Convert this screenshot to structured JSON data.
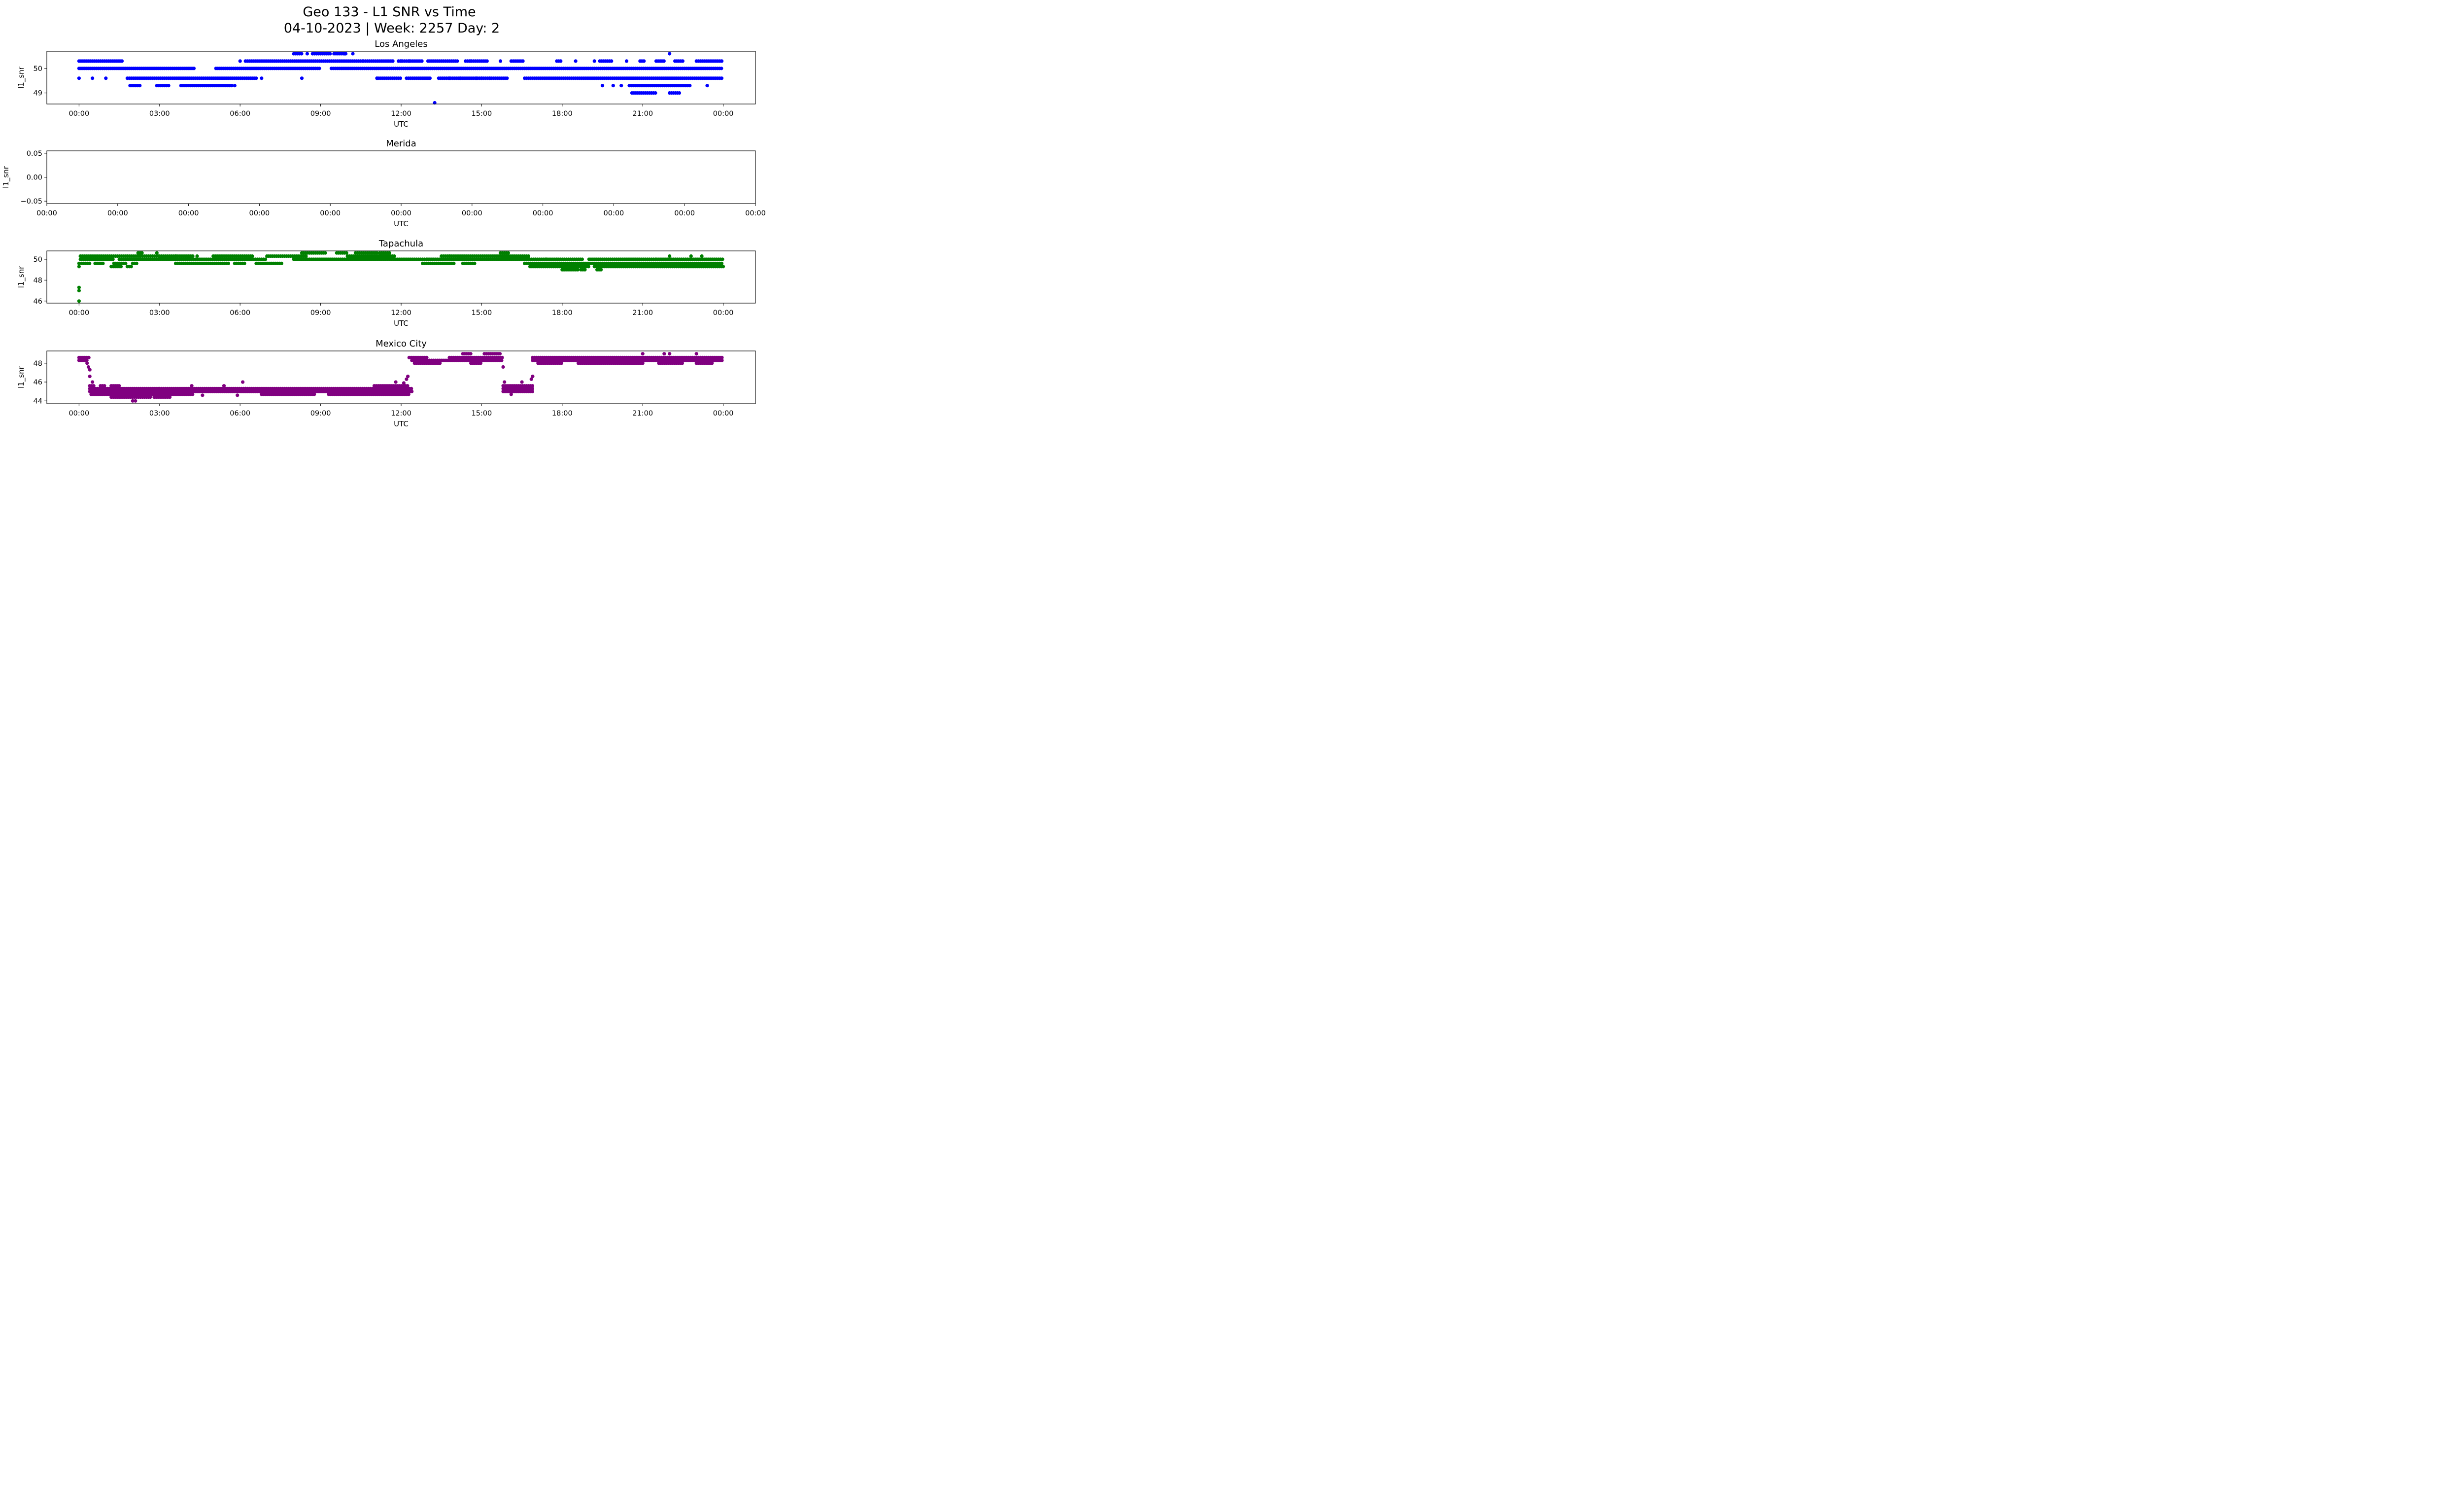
{
  "figure": {
    "title_line1": "Geo 133 - L1 SNR vs Time",
    "title_line2": "04-10-2023 | Week: 2257 Day: 2"
  },
  "chart_data": [
    {
      "type": "scatter",
      "title": "Los Angeles",
      "xlabel": "UTC",
      "ylabel": "l1_snr",
      "color": "#0000ff",
      "x_range_hours": [
        -1.2,
        25.2
      ],
      "ylim": [
        48.55,
        50.7
      ],
      "x_ticks": [
        0,
        3,
        6,
        9,
        12,
        15,
        18,
        21,
        24
      ],
      "x_tick_labels": [
        "00:00",
        "03:00",
        "06:00",
        "09:00",
        "12:00",
        "15:00",
        "18:00",
        "21:00",
        "00:00"
      ],
      "y_ticks": [
        49,
        50
      ],
      "y_tick_labels": [
        "49",
        "50"
      ],
      "bands": [
        {
          "y": 50.3,
          "segments": [
            [
              0,
              1.65
            ],
            [
              6.2,
              10.6
            ],
            [
              10.6,
              11.7
            ],
            [
              11.9,
              12.8
            ],
            [
              13.0,
              14.1
            ],
            [
              14.4,
              15.2
            ],
            [
              16.1,
              16.6
            ],
            [
              17.8,
              18.0
            ],
            [
              19.4,
              19.9
            ],
            [
              20.9,
              21.1
            ],
            [
              21.5,
              21.8
            ],
            [
              22.2,
              22.5
            ],
            [
              23.0,
              24.0
            ]
          ]
        },
        {
          "y": 50.0,
          "segments": [
            [
              0,
              2.1
            ],
            [
              2.1,
              4.3
            ],
            [
              5.1,
              9.0
            ],
            [
              9.4,
              11.5
            ],
            [
              11.5,
              24.0
            ]
          ]
        },
        {
          "y": 49.6,
          "segments": [
            [
              1.8,
              6.6
            ],
            [
              11.1,
              12.0
            ],
            [
              12.2,
              13.1
            ],
            [
              13.4,
              15.0
            ],
            [
              15.0,
              16.0
            ],
            [
              16.6,
              24.0
            ]
          ]
        },
        {
          "y": 49.3,
          "segments": [
            [
              1.9,
              2.3
            ],
            [
              2.9,
              3.4
            ],
            [
              3.8,
              5.7
            ],
            [
              20.5,
              22.8
            ]
          ]
        },
        {
          "y": 49.0,
          "segments": [
            [
              20.6,
              21.5
            ],
            [
              22.0,
              22.4
            ]
          ]
        },
        {
          "y": 50.6,
          "segments": [
            [
              8.0,
              8.3
            ],
            [
              8.7,
              9.4
            ],
            [
              9.5,
              10.0
            ]
          ]
        }
      ],
      "points": [
        [
          0.0,
          49.6
        ],
        [
          0.5,
          49.6
        ],
        [
          1.0,
          49.6
        ],
        [
          6.8,
          49.6
        ],
        [
          8.3,
          49.6
        ],
        [
          11.1,
          49.6
        ],
        [
          5.8,
          49.3
        ],
        [
          13.25,
          48.6
        ],
        [
          6.0,
          50.3
        ],
        [
          12.0,
          50.3
        ],
        [
          12.3,
          50.3
        ],
        [
          14.6,
          50.3
        ],
        [
          15.7,
          50.3
        ],
        [
          18.5,
          50.3
        ],
        [
          19.2,
          50.3
        ],
        [
          20.4,
          50.3
        ],
        [
          22.0,
          50.6
        ],
        [
          8.5,
          50.6
        ],
        [
          9.9,
          50.6
        ],
        [
          10.2,
          50.6
        ],
        [
          19.5,
          49.3
        ],
        [
          19.9,
          49.3
        ],
        [
          20.2,
          49.3
        ],
        [
          23.4,
          49.3
        ],
        [
          13.8,
          49.6
        ],
        [
          14.2,
          49.6
        ],
        [
          14.8,
          49.6
        ],
        [
          15.3,
          49.6
        ]
      ],
      "marker_radius": 3.6,
      "band_density": 1
    },
    {
      "type": "scatter",
      "title": "Merida",
      "xlabel": "UTC",
      "ylabel": "l1_snr",
      "color": "#000000",
      "x_range_hours": [
        0,
        10
      ],
      "ylim": [
        -0.055,
        0.055
      ],
      "x_ticks": [
        0,
        1,
        2,
        3,
        4,
        5,
        6,
        7,
        8,
        9,
        10
      ],
      "x_tick_labels": [
        "00:00",
        "00:00",
        "00:00",
        "00:00",
        "00:00",
        "00:00",
        "00:00",
        "00:00",
        "00:00",
        "00:00",
        "00:00"
      ],
      "y_ticks": [
        -0.05,
        0,
        0.05
      ],
      "y_tick_labels": [
        "−0.05",
        "0.00",
        "0.05"
      ],
      "bands": [],
      "points": [],
      "marker_radius": 3.6,
      "band_density": 1
    },
    {
      "type": "scatter",
      "title": "Tapachula",
      "xlabel": "UTC",
      "ylabel": "l1_snr",
      "color": "#008000",
      "x_range_hours": [
        -1.2,
        25.2
      ],
      "ylim": [
        45.8,
        50.8
      ],
      "x_ticks": [
        0,
        3,
        6,
        9,
        12,
        15,
        18,
        21,
        24
      ],
      "x_tick_labels": [
        "00:00",
        "03:00",
        "06:00",
        "09:00",
        "12:00",
        "15:00",
        "18:00",
        "21:00",
        "00:00"
      ],
      "y_ticks": [
        46,
        48,
        50
      ],
      "y_tick_labels": [
        "46",
        "48",
        "50"
      ],
      "bands": [
        {
          "y": 50.3,
          "segments": [
            [
              0.05,
              1.8
            ],
            [
              1.8,
              2.3
            ],
            [
              2.3,
              3.0
            ],
            [
              3.0,
              4.3
            ],
            [
              5.0,
              6.5
            ],
            [
              7.0,
              8.5
            ],
            [
              10.0,
              11.8
            ],
            [
              13.5,
              15.8
            ],
            [
              15.8,
              16.8
            ]
          ]
        },
        {
          "y": 50.0,
          "segments": [
            [
              0.1,
              1.3
            ],
            [
              1.5,
              3.6
            ],
            [
              3.6,
              7.0
            ],
            [
              8.0,
              13.0
            ],
            [
              13.0,
              17.0
            ],
            [
              17.0,
              18.8
            ],
            [
              19.0,
              21.5
            ],
            [
              21.5,
              24.0
            ]
          ]
        },
        {
          "y": 49.6,
          "segments": [
            [
              0.1,
              0.4
            ],
            [
              0.6,
              0.9
            ],
            [
              1.3,
              1.8
            ],
            [
              2.0,
              2.2
            ],
            [
              3.6,
              5.6
            ],
            [
              5.8,
              6.2
            ],
            [
              6.6,
              7.6
            ],
            [
              12.8,
              14.0
            ],
            [
              14.3,
              14.8
            ],
            [
              16.6,
              24.0
            ]
          ]
        },
        {
          "y": 49.3,
          "segments": [
            [
              1.2,
              1.6
            ],
            [
              1.8,
              2.0
            ],
            [
              16.8,
              19.0
            ],
            [
              19.2,
              24.0
            ]
          ]
        },
        {
          "y": 49.0,
          "segments": [
            [
              18.0,
              18.6
            ],
            [
              18.7,
              18.9
            ],
            [
              19.3,
              19.5
            ]
          ]
        },
        {
          "y": 50.6,
          "segments": [
            [
              2.2,
              2.4
            ],
            [
              8.3,
              9.2
            ],
            [
              9.6,
              10.0
            ],
            [
              10.3,
              11.1
            ],
            [
              11.2,
              11.6
            ],
            [
              15.7,
              16.0
            ]
          ]
        }
      ],
      "points": [
        [
          0.0,
          46.0
        ],
        [
          0.0,
          47.0
        ],
        [
          0.0,
          47.3
        ],
        [
          0.0,
          49.3
        ],
        [
          0.0,
          49.6
        ],
        [
          0.05,
          50.0
        ],
        [
          2.9,
          50.6
        ],
        [
          3.6,
          50.3
        ],
        [
          4.4,
          50.3
        ],
        [
          13.8,
          50.3
        ],
        [
          17.4,
          50.0
        ],
        [
          17.8,
          50.0
        ],
        [
          22.0,
          50.3
        ],
        [
          22.8,
          50.3
        ],
        [
          23.2,
          50.3
        ]
      ],
      "marker_radius": 3.6,
      "band_density": 1
    },
    {
      "type": "scatter",
      "title": "Mexico City",
      "xlabel": "UTC",
      "ylabel": "l1_snr",
      "color": "#800080",
      "x_range_hours": [
        -1.2,
        25.2
      ],
      "ylim": [
        43.7,
        49.3
      ],
      "x_ticks": [
        0,
        3,
        6,
        9,
        12,
        15,
        18,
        21,
        24
      ],
      "x_tick_labels": [
        "00:00",
        "03:00",
        "06:00",
        "09:00",
        "12:00",
        "15:00",
        "18:00",
        "21:00",
        "00:00"
      ],
      "y_ticks": [
        44,
        46,
        48
      ],
      "y_tick_labels": [
        "44",
        "46",
        "48"
      ],
      "bands": [
        {
          "y": 48.6,
          "segments": [
            [
              0.0,
              0.4
            ],
            [
              12.3,
              13.0
            ],
            [
              13.8,
              15.8
            ],
            [
              16.9,
              24.0
            ]
          ]
        },
        {
          "y": 48.3,
          "segments": [
            [
              0.0,
              0.35
            ],
            [
              12.4,
              15.8
            ],
            [
              16.9,
              24.0
            ]
          ]
        },
        {
          "y": 48.0,
          "segments": [
            [
              12.5,
              13.5
            ],
            [
              14.6,
              15.0
            ],
            [
              17.1,
              18.0
            ],
            [
              18.6,
              21.0
            ],
            [
              21.6,
              22.5
            ],
            [
              23.0,
              23.6
            ]
          ]
        },
        {
          "y": 45.6,
          "segments": [
            [
              0.4,
              0.6
            ],
            [
              0.8,
              1.0
            ],
            [
              1.2,
              1.5
            ],
            [
              11.0,
              12.3
            ],
            [
              15.8,
              16.9
            ]
          ]
        },
        {
          "y": 45.3,
          "segments": [
            [
              0.4,
              3.0
            ],
            [
              3.0,
              6.2
            ],
            [
              6.2,
              12.4
            ],
            [
              15.8,
              16.9
            ]
          ]
        },
        {
          "y": 45.0,
          "segments": [
            [
              0.4,
              12.4
            ],
            [
              15.8,
              16.9
            ]
          ]
        },
        {
          "y": 44.7,
          "segments": [
            [
              0.45,
              4.3
            ],
            [
              6.8,
              8.8
            ],
            [
              9.3,
              12.3
            ]
          ]
        },
        {
          "y": 44.4,
          "segments": [
            [
              1.2,
              2.7
            ],
            [
              2.8,
              3.4
            ]
          ]
        },
        {
          "y": 49.0,
          "segments": [
            [
              14.3,
              14.6
            ],
            [
              15.1,
              15.7
            ]
          ]
        }
      ],
      "points": [
        [
          0.3,
          48.0
        ],
        [
          0.35,
          47.6
        ],
        [
          0.4,
          47.3
        ],
        [
          0.4,
          46.6
        ],
        [
          0.5,
          46.0
        ],
        [
          2.0,
          44.0
        ],
        [
          2.1,
          44.0
        ],
        [
          6.1,
          46.0
        ],
        [
          12.2,
          46.3
        ],
        [
          12.25,
          46.6
        ],
        [
          12.1,
          45.9
        ],
        [
          11.8,
          46.0
        ],
        [
          4.2,
          45.6
        ],
        [
          5.4,
          45.6
        ],
        [
          15.8,
          47.6
        ],
        [
          15.85,
          46.0
        ],
        [
          16.85,
          46.3
        ],
        [
          16.9,
          46.6
        ],
        [
          16.5,
          46.0
        ],
        [
          16.1,
          44.7
        ],
        [
          21.0,
          49.0
        ],
        [
          21.8,
          49.0
        ],
        [
          22.0,
          49.0
        ],
        [
          23.0,
          49.0
        ],
        [
          4.6,
          44.6
        ],
        [
          5.9,
          44.6
        ]
      ],
      "marker_radius": 3.6,
      "band_density": 1
    }
  ]
}
